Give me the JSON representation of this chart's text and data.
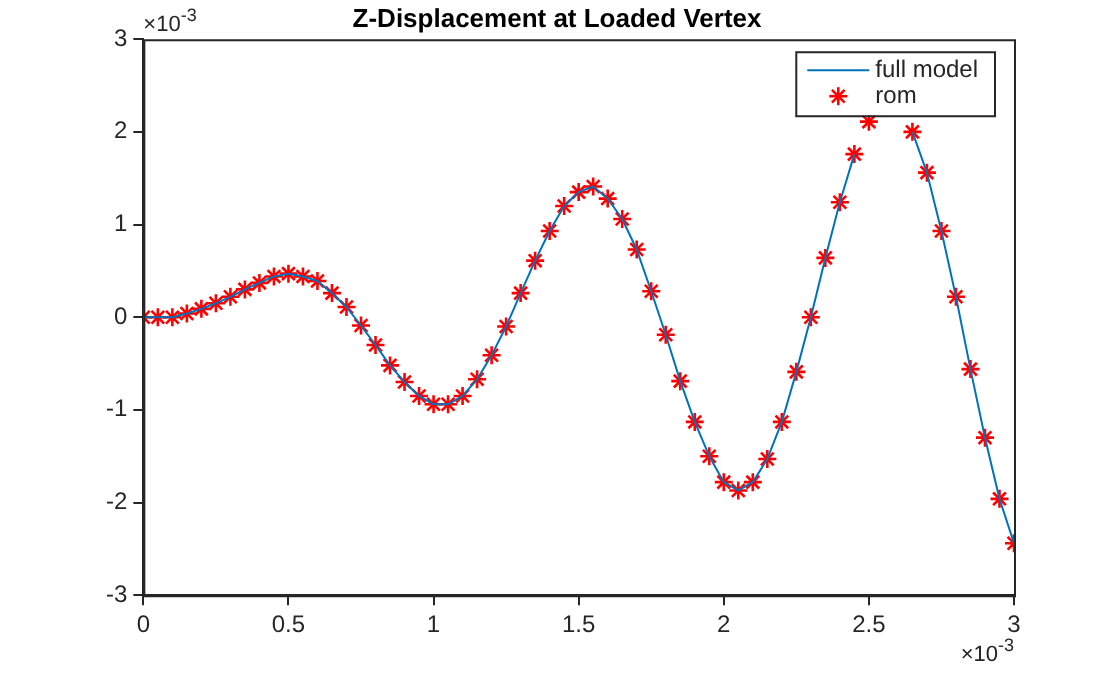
{
  "chart_data": {
    "type": "line",
    "title": "Z-Displacement at Loaded Vertex",
    "x": [
      0,
      0.05,
      0.1,
      0.15,
      0.2,
      0.25,
      0.3,
      0.35,
      0.4,
      0.45,
      0.5,
      0.55,
      0.6,
      0.65,
      0.7,
      0.75,
      0.8,
      0.85,
      0.9,
      0.95,
      1,
      1.05,
      1.1,
      1.15,
      1.2,
      1.25,
      1.3,
      1.35,
      1.4,
      1.45,
      1.5,
      1.55,
      1.6,
      1.65,
      1.7,
      1.75,
      1.8,
      1.85,
      1.9,
      1.95,
      2,
      2.05,
      2.1,
      2.15,
      2.2,
      2.25,
      2.3,
      2.35,
      2.4,
      2.45,
      2.5,
      2.55,
      2.6,
      2.65,
      2.7,
      2.75,
      2.8,
      2.85,
      2.9,
      2.95,
      3
    ],
    "series": [
      {
        "name": "full model",
        "type": "line",
        "marker": "none",
        "color": "#0072bd",
        "values": [
          0,
          0,
          0,
          0.04,
          0.09,
          0.15,
          0.22,
          0.3,
          0.37,
          0.44,
          0.47,
          0.44,
          0.39,
          0.26,
          0.11,
          -0.09,
          -0.3,
          -0.52,
          -0.7,
          -0.85,
          -0.94,
          -0.94,
          -0.85,
          -0.67,
          -0.41,
          -0.1,
          0.26,
          0.61,
          0.93,
          1.2,
          1.35,
          1.41,
          1.28,
          1.06,
          0.73,
          0.28,
          -0.19,
          -0.69,
          -1.13,
          -1.5,
          -1.78,
          -1.87,
          -1.78,
          -1.53,
          -1.13,
          -0.59,
          0,
          0.64,
          1.24,
          1.76,
          null,
          null,
          null,
          2.0,
          1.56,
          0.93,
          0.22,
          -0.56,
          -1.3,
          -1.96,
          -2.44
        ]
      },
      {
        "name": "rom",
        "type": "scatter",
        "marker": "cross",
        "color": "#ff0000",
        "values": [
          0,
          0,
          0,
          0.04,
          0.09,
          0.15,
          0.22,
          0.3,
          0.37,
          0.44,
          0.47,
          0.44,
          0.39,
          0.26,
          0.11,
          -0.09,
          -0.3,
          -0.52,
          -0.7,
          -0.85,
          -0.94,
          -0.94,
          -0.85,
          -0.67,
          -0.41,
          -0.1,
          0.26,
          0.61,
          0.93,
          1.2,
          1.35,
          1.41,
          1.28,
          1.06,
          0.73,
          0.28,
          -0.19,
          -0.69,
          -1.13,
          -1.5,
          -1.78,
          -1.87,
          -1.78,
          -1.53,
          -1.13,
          -0.59,
          0,
          0.64,
          1.24,
          1.76,
          2.11,
          null,
          null,
          2.0,
          1.56,
          0.93,
          0.22,
          -0.56,
          -1.3,
          -1.96,
          -2.44
        ]
      }
    ],
    "xlim": [
      0,
      3
    ],
    "xticks": [
      0,
      0.5,
      1,
      1.5,
      2,
      2.5,
      3
    ],
    "ylim": [
      -3,
      3
    ],
    "yticks": [
      -3,
      -2,
      -1,
      0,
      1,
      2,
      3
    ],
    "grid": false,
    "legend": "top right",
    "annotations": [
      "×10$^{-3}$",
      "×10$^{-3}$"
    ]
  }
}
